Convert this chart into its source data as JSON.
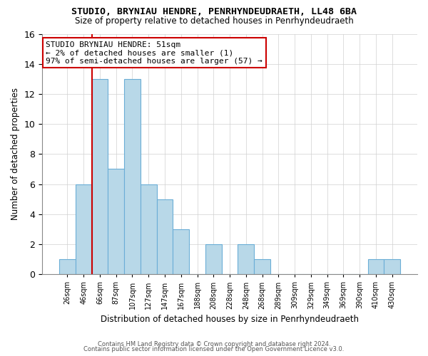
{
  "title": "STUDIO, BRYNIAU HENDRE, PENRHYNDEUDRAETH, LL48 6BA",
  "subtitle": "Size of property relative to detached houses in Penrhyndeudraeth",
  "xlabel": "Distribution of detached houses by size in Penrhyndeudraeth",
  "ylabel": "Number of detached properties",
  "bin_labels": [
    "26sqm",
    "46sqm",
    "66sqm",
    "87sqm",
    "107sqm",
    "127sqm",
    "147sqm",
    "167sqm",
    "188sqm",
    "208sqm",
    "228sqm",
    "248sqm",
    "268sqm",
    "289sqm",
    "309sqm",
    "329sqm",
    "349sqm",
    "369sqm",
    "390sqm",
    "410sqm",
    "430sqm"
  ],
  "bar_heights": [
    1,
    6,
    13,
    7,
    13,
    6,
    5,
    3,
    0,
    2,
    0,
    2,
    1,
    0,
    0,
    0,
    0,
    0,
    0,
    1,
    1
  ],
  "bar_color": "#b8d8e8",
  "bar_edge_color": "#6baed6",
  "highlight_line_color": "#cc0000",
  "annotation_line1": "STUDIO BRYNIAU HENDRE: 51sqm",
  "annotation_line2": "← 2% of detached houses are smaller (1)",
  "annotation_line3": "97% of semi-detached houses are larger (57) →",
  "annotation_box_edge": "#cc0000",
  "ylim": [
    0,
    16
  ],
  "yticks": [
    0,
    2,
    4,
    6,
    8,
    10,
    12,
    14,
    16
  ],
  "footer1": "Contains HM Land Registry data © Crown copyright and database right 2024.",
  "footer2": "Contains public sector information licensed under the Open Government Licence v3.0."
}
